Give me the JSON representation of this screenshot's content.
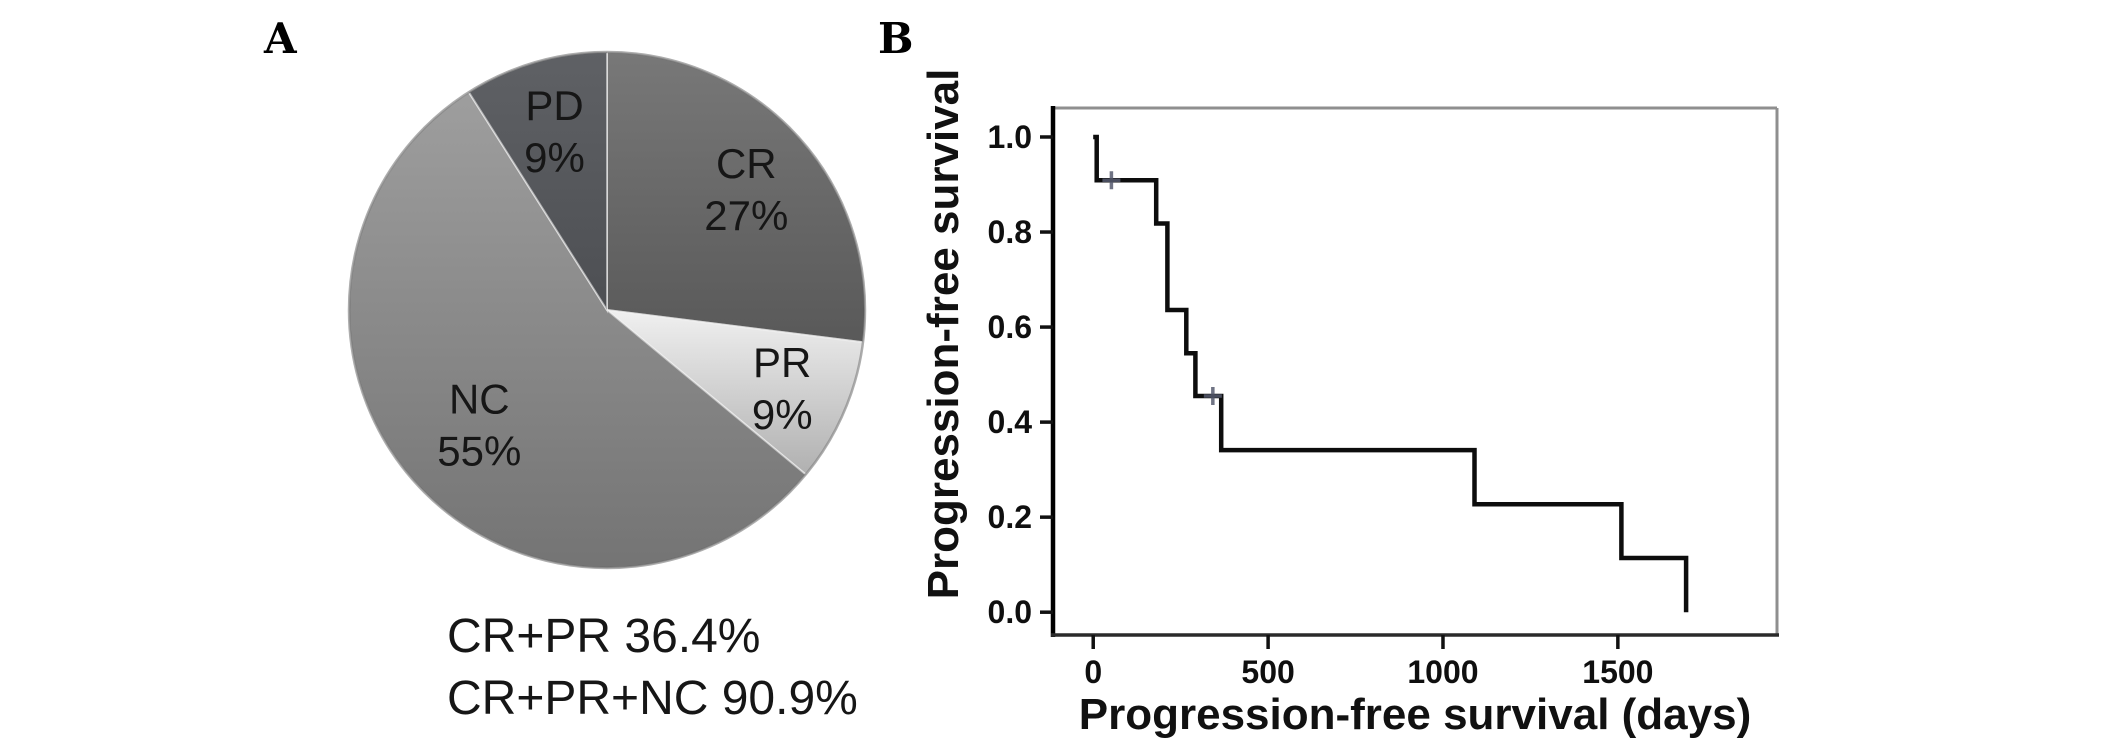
{
  "panels": {
    "a": {
      "label": "A"
    },
    "b": {
      "label": "B"
    }
  },
  "chart_data": [
    {
      "type": "pie",
      "panel": "A",
      "order_clockwise_from_top": true,
      "slices": [
        {
          "name": "CR",
          "pct": 27,
          "pct_label": "27%",
          "color_top": "#787878",
          "color_bottom": "#595959",
          "label_r": 0.72
        },
        {
          "name": "PR",
          "pct": 9,
          "pct_label": "9%",
          "color_top": "#f0f0f0",
          "color_bottom": "#b0b0b0",
          "label_r": 0.74
        },
        {
          "name": "NC",
          "pct": 55,
          "pct_label": "55%",
          "color_top": "#9e9e9e",
          "color_bottom": "#747474",
          "label_r": 0.66
        },
        {
          "name": "PD",
          "pct": 9,
          "pct_label": "9%",
          "color_top": "#5f6165",
          "color_bottom": "#4d4f53",
          "label_r": 0.73
        }
      ],
      "label_color": "#161616",
      "annotations": [
        "CR+PR 36.4%",
        "CR+PR+NC 90.9%"
      ]
    },
    {
      "type": "line",
      "subtype": "kaplan-meier-step",
      "panel": "B",
      "xlabel": "Progression-free survival (days)",
      "ylabel": "Progression-free survival",
      "xlim": [
        -115,
        1955
      ],
      "ylim": [
        -0.048,
        1.061
      ],
      "x_ticks": [
        0,
        500,
        1000,
        1500
      ],
      "x_tick_labels": [
        "0",
        "500",
        "1000",
        "1500"
      ],
      "y_ticks": [
        0.0,
        0.2,
        0.4,
        0.6,
        0.8,
        1.0
      ],
      "y_tick_labels": [
        "0.0",
        "0.2",
        "0.4",
        "0.6",
        "0.8",
        "1.0"
      ],
      "grid": false,
      "legend": "none",
      "line_color": "#0d0d0d",
      "step_points": [
        [
          0,
          1.0
        ],
        [
          10,
          1.0
        ],
        [
          10,
          0.909
        ],
        [
          180,
          0.909
        ],
        [
          180,
          0.818
        ],
        [
          212,
          0.818
        ],
        [
          212,
          0.636
        ],
        [
          266,
          0.636
        ],
        [
          266,
          0.545
        ],
        [
          292,
          0.545
        ],
        [
          292,
          0.455
        ],
        [
          366,
          0.455
        ],
        [
          366,
          0.341
        ],
        [
          1090,
          0.341
        ],
        [
          1090,
          0.227
        ],
        [
          1510,
          0.227
        ],
        [
          1510,
          0.114
        ],
        [
          1695,
          0.114
        ],
        [
          1695,
          0.0
        ]
      ],
      "censor_marks": [
        [
          52,
          0.909
        ],
        [
          342,
          0.455
        ]
      ]
    }
  ]
}
